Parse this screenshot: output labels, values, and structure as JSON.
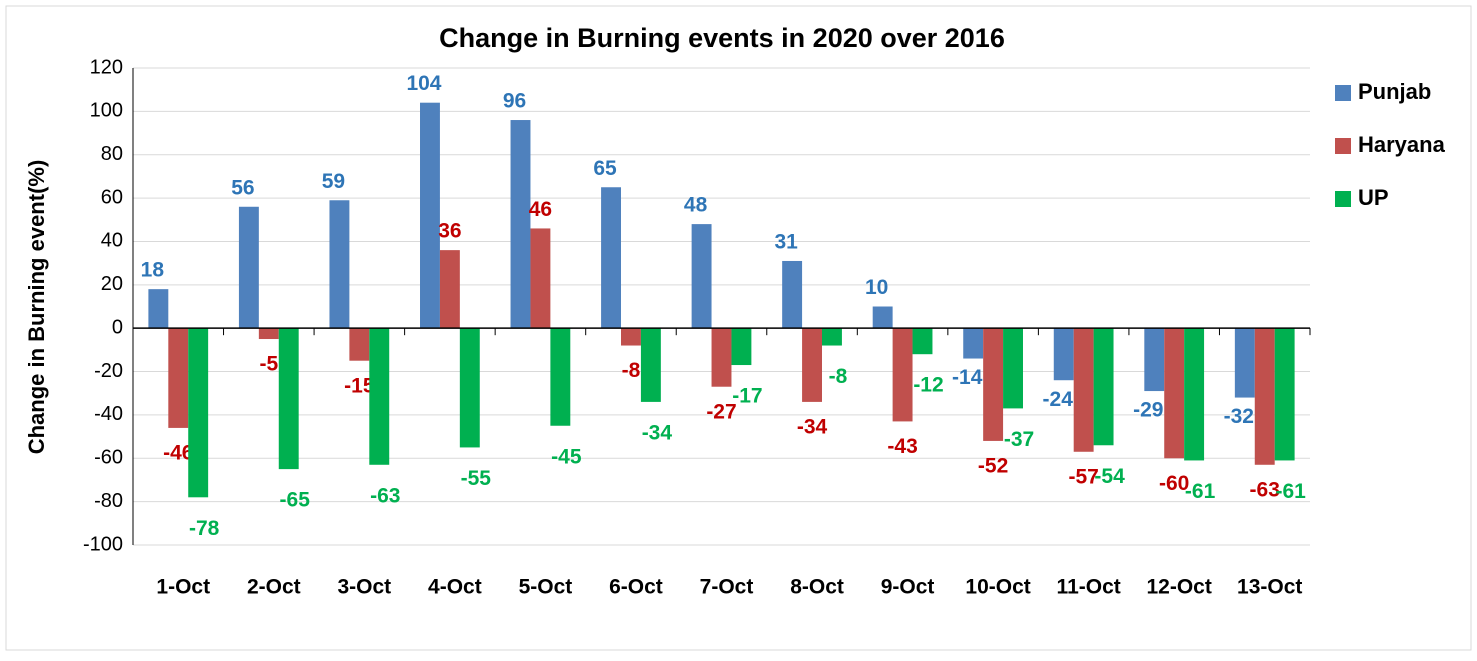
{
  "chart_data": {
    "type": "bar",
    "title": "Change in Burning events in 2020 over 2016",
    "y_label": "Change in Burning event(%)",
    "categories": [
      "1-Oct",
      "2-Oct",
      "3-Oct",
      "4-Oct",
      "5-Oct",
      "6-Oct",
      "7-Oct",
      "8-Oct",
      "9-Oct",
      "10-Oct",
      "11-Oct",
      "12-Oct",
      "13-Oct"
    ],
    "series": [
      {
        "name": "Punjab",
        "color": "#4f81bd",
        "label_color": "#2e75b6",
        "values": [
          18,
          56,
          59,
          104,
          96,
          65,
          48,
          31,
          10,
          -14,
          -24,
          -29,
          -32
        ]
      },
      {
        "name": "Haryana",
        "color": "#c0504d",
        "label_color": "#c00000",
        "values": [
          -46,
          -5,
          -15,
          36,
          46,
          -8,
          -27,
          -34,
          -43,
          -52,
          -57,
          -60,
          -63
        ]
      },
      {
        "name": "UP",
        "color": "#00b050",
        "label_color": "#00b050",
        "values": [
          -78,
          -65,
          -63,
          -55,
          -45,
          -34,
          -17,
          -8,
          -12,
          -37,
          -54,
          -61,
          -61
        ]
      }
    ],
    "ylim": [
      -100,
      120
    ],
    "yticks": [
      -100,
      -80,
      -60,
      -40,
      -20,
      0,
      20,
      40,
      60,
      80,
      100,
      120
    ],
    "grid": true,
    "legend": "right"
  }
}
